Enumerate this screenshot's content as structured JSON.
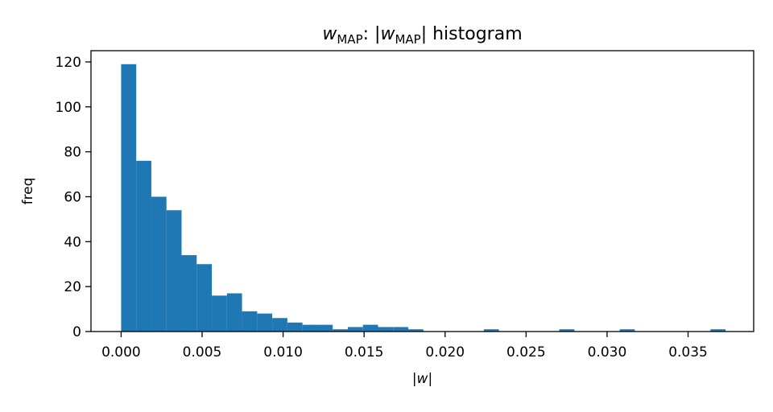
{
  "chart_data": {
    "type": "bar",
    "title": {
      "prefix_var": "w",
      "prefix_sub": "MAP",
      "middle": ": |",
      "var": "w",
      "sub": "MAP",
      "suffix": "| histogram"
    },
    "xlabel": {
      "left": "|",
      "var": "w",
      "right": "|"
    },
    "ylabel": "freq",
    "xlim": [
      -0.00186,
      0.03905
    ],
    "ylim": [
      0,
      125
    ],
    "x_ticks": [
      "0.000",
      "0.005",
      "0.010",
      "0.015",
      "0.020",
      "0.025",
      "0.030",
      "0.035"
    ],
    "y_ticks": [
      "0",
      "20",
      "40",
      "60",
      "80",
      "100",
      "120"
    ],
    "bar_color": "#1f77b4",
    "bin_width": 0.000933,
    "bins": [
      {
        "x0": 0.0,
        "count": 119
      },
      {
        "x0": 0.000933,
        "count": 76
      },
      {
        "x0": 0.001866,
        "count": 60
      },
      {
        "x0": 0.002799,
        "count": 54
      },
      {
        "x0": 0.003732,
        "count": 34
      },
      {
        "x0": 0.004665,
        "count": 30
      },
      {
        "x0": 0.005598,
        "count": 16
      },
      {
        "x0": 0.006531,
        "count": 17
      },
      {
        "x0": 0.007464,
        "count": 9
      },
      {
        "x0": 0.008397,
        "count": 8
      },
      {
        "x0": 0.00933,
        "count": 6
      },
      {
        "x0": 0.010263,
        "count": 4
      },
      {
        "x0": 0.011196,
        "count": 3
      },
      {
        "x0": 0.012129,
        "count": 3
      },
      {
        "x0": 0.013062,
        "count": 1
      },
      {
        "x0": 0.013995,
        "count": 2
      },
      {
        "x0": 0.014928,
        "count": 3
      },
      {
        "x0": 0.015861,
        "count": 2
      },
      {
        "x0": 0.016794,
        "count": 2
      },
      {
        "x0": 0.017727,
        "count": 1
      },
      {
        "x0": 0.02239,
        "count": 1
      },
      {
        "x0": 0.02705,
        "count": 1
      },
      {
        "x0": 0.03078,
        "count": 1
      },
      {
        "x0": 0.03638,
        "count": 1
      }
    ]
  }
}
